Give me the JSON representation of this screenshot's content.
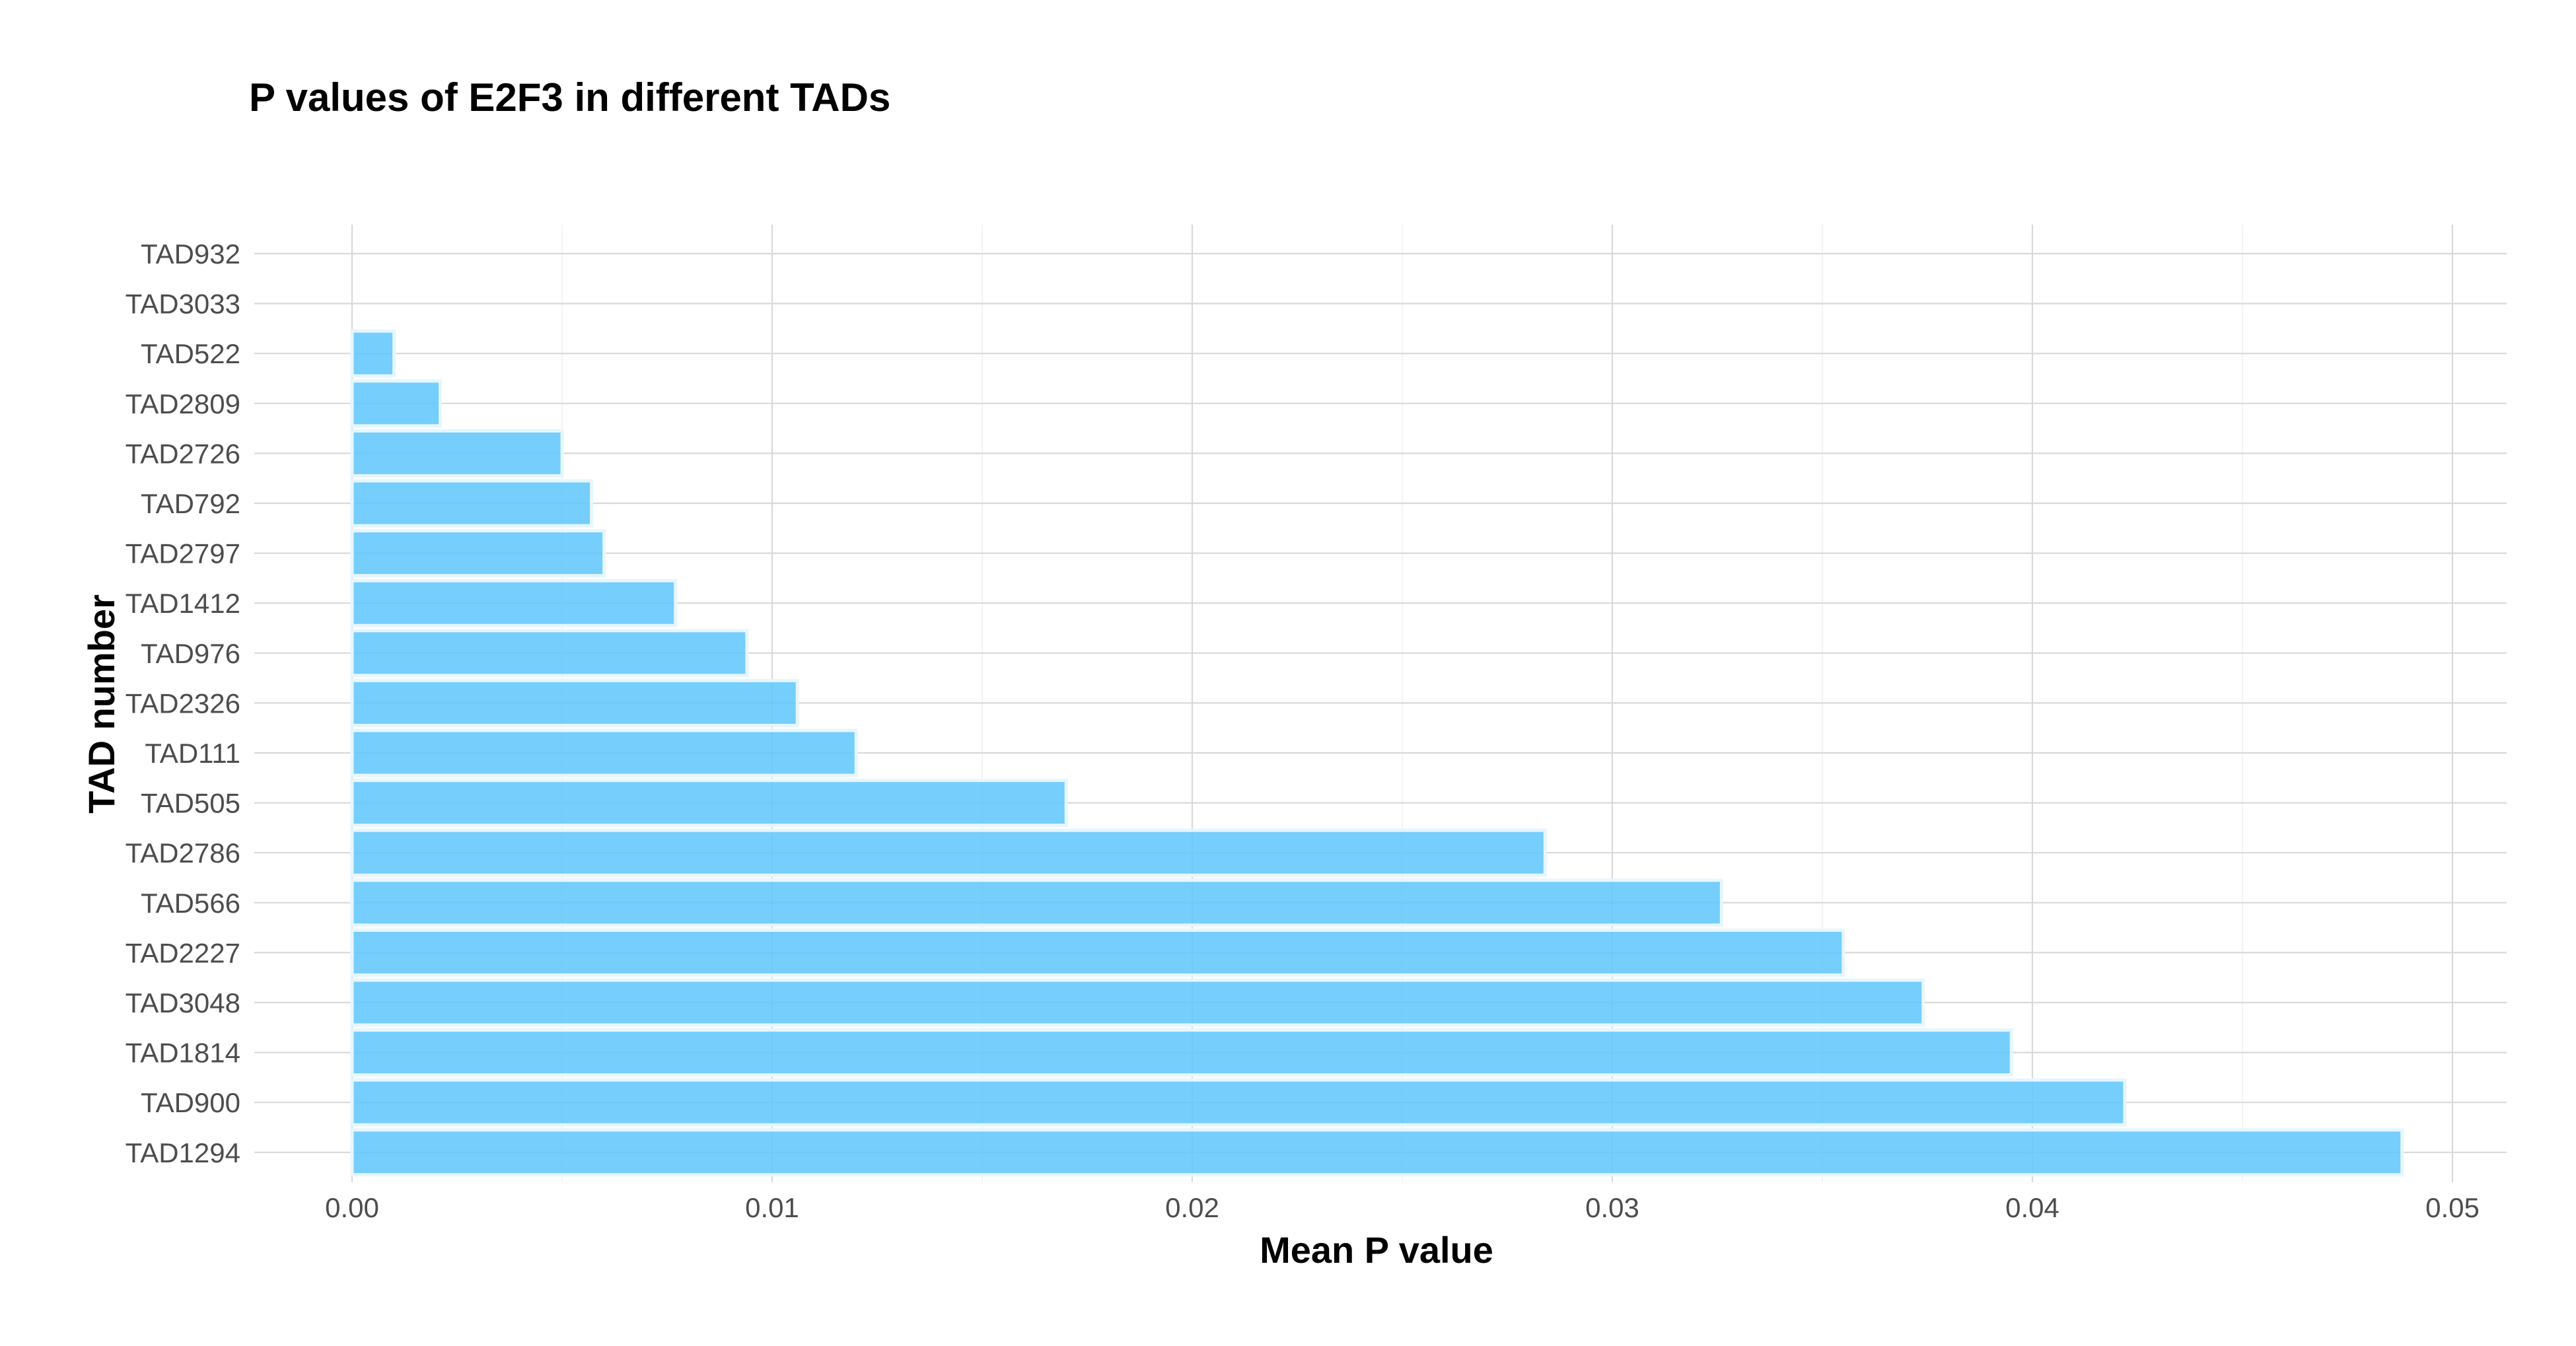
{
  "chart_data": {
    "type": "bar",
    "orientation": "horizontal",
    "title": "P values of E2F3 in different TADs",
    "xlabel": "Mean P value",
    "ylabel": "TAD number",
    "xlim": [
      0,
      0.05
    ],
    "x_ticks": [
      "0.00",
      "0.01",
      "0.02",
      "0.03",
      "0.04",
      "0.05"
    ],
    "categories": [
      "TAD932",
      "TAD3033",
      "TAD522",
      "TAD2809",
      "TAD2726",
      "TAD792",
      "TAD2797",
      "TAD1412",
      "TAD976",
      "TAD2326",
      "TAD111",
      "TAD505",
      "TAD2786",
      "TAD566",
      "TAD2227",
      "TAD3048",
      "TAD1814",
      "TAD900",
      "TAD1294"
    ],
    "values": [
      0,
      0,
      0.001,
      0.0021,
      0.005,
      0.0057,
      0.006,
      0.0077,
      0.0094,
      0.0106,
      0.012,
      0.017,
      0.0284,
      0.0326,
      0.0355,
      0.0374,
      0.0395,
      0.0422,
      0.0488
    ],
    "bar_color": "#5ec6fc",
    "grid": true,
    "legend": "none"
  }
}
